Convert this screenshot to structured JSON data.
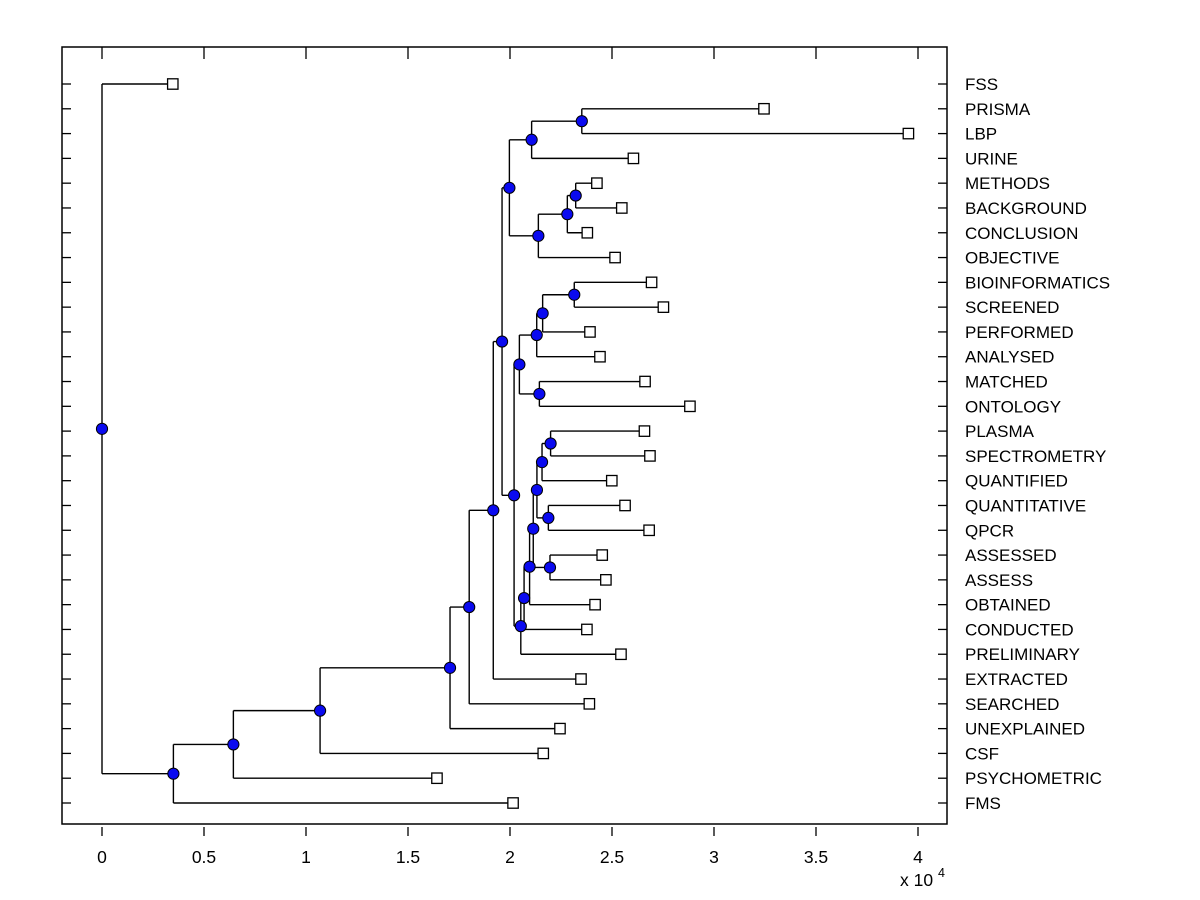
{
  "figure": {
    "background": "#ffffff",
    "colors": {
      "branch_line": "#000000",
      "node_dot_fill": "#0a0af0",
      "node_dot_edge": "#000000",
      "leaf_marker_fill": "#ffffff",
      "leaf_marker_edge": "#000000",
      "text": "#000000",
      "axis_box": "#000000"
    }
  },
  "chart_data": {
    "type": "dendrogram",
    "subtype": "horizontal phylogenetic tree, root at left (distance 0), leaves at right",
    "title": "",
    "grid": "off",
    "legend": "none",
    "x_axis": {
      "tick_labels": [
        "0",
        "0.5",
        "1",
        "1.5",
        "2",
        "2.5",
        "3",
        "3.5",
        "4"
      ],
      "tick_values": [
        0,
        0.5,
        1,
        1.5,
        2,
        2.5,
        3,
        3.5,
        4
      ],
      "multiplier": {
        "prefix": "x 10",
        "exponent": "4"
      },
      "range_shown": [
        -0.2,
        4.14
      ]
    },
    "style": {
      "internal_node_marker": "filled blue circle",
      "leaf_marker": "open white square"
    },
    "leaves": [
      {
        "label": "FSS",
        "x": 0.347
      },
      {
        "label": "PRISMA",
        "x": 3.245
      },
      {
        "label": "LBP",
        "x": 3.953
      },
      {
        "label": "URINE",
        "x": 2.605
      },
      {
        "label": "METHODS",
        "x": 2.426
      },
      {
        "label": "BACKGROUND",
        "x": 2.548
      },
      {
        "label": "CONCLUSION",
        "x": 2.379
      },
      {
        "label": "OBJECTIVE",
        "x": 2.515
      },
      {
        "label": "BIOINFORMATICS",
        "x": 2.694
      },
      {
        "label": "SCREENED",
        "x": 2.752
      },
      {
        "label": "PERFORMED",
        "x": 2.392
      },
      {
        "label": "ANALYSED",
        "x": 2.441
      },
      {
        "label": "MATCHED",
        "x": 2.662
      },
      {
        "label": "ONTOLOGY",
        "x": 2.882
      },
      {
        "label": "PLASMA",
        "x": 2.659
      },
      {
        "label": "SPECTROMETRY",
        "x": 2.686
      },
      {
        "label": "QUANTIFIED",
        "x": 2.499
      },
      {
        "label": "QUANTITATIVE",
        "x": 2.564
      },
      {
        "label": "QPCR",
        "x": 2.682
      },
      {
        "label": "ASSESSED",
        "x": 2.452
      },
      {
        "label": "ASSESS",
        "x": 2.47
      },
      {
        "label": "OBTAINED",
        "x": 2.417
      },
      {
        "label": "CONDUCTED",
        "x": 2.377
      },
      {
        "label": "PRELIMINARY",
        "x": 2.544
      },
      {
        "label": "EXTRACTED",
        "x": 2.348
      },
      {
        "label": "SEARCHED",
        "x": 2.389
      },
      {
        "label": "UNEXPLAINED",
        "x": 2.245
      },
      {
        "label": "CSF",
        "x": 2.163
      },
      {
        "label": "PSYCHOMETRIC",
        "x": 1.642
      },
      {
        "label": "FMS",
        "x": 2.015
      }
    ],
    "internal_nodes": [
      {
        "id": "n_prisma_lbp",
        "x": 2.352,
        "children": [
          "PRISMA",
          "LBP"
        ]
      },
      {
        "id": "n_urine",
        "x": 2.106,
        "children": [
          "n_prisma_lbp",
          "URINE"
        ]
      },
      {
        "id": "n_meth_back",
        "x": 2.322,
        "children": [
          "METHODS",
          "BACKGROUND"
        ]
      },
      {
        "id": "n_conclusion",
        "x": 2.281,
        "children": [
          "n_meth_back",
          "CONCLUSION"
        ]
      },
      {
        "id": "n_objective",
        "x": 2.139,
        "children": [
          "n_conclusion",
          "OBJECTIVE"
        ]
      },
      {
        "id": "n_top8",
        "x": 1.997,
        "children": [
          "n_urine",
          "n_objective"
        ]
      },
      {
        "id": "n_bio_scr",
        "x": 2.315,
        "children": [
          "BIOINFORMATICS",
          "SCREENED"
        ]
      },
      {
        "id": "n_performed",
        "x": 2.16,
        "children": [
          "n_bio_scr",
          "PERFORMED"
        ]
      },
      {
        "id": "n_analysed",
        "x": 2.131,
        "children": [
          "n_performed",
          "ANALYSED"
        ]
      },
      {
        "id": "n_match_onto",
        "x": 2.144,
        "children": [
          "MATCHED",
          "ONTOLOGY"
        ]
      },
      {
        "id": "n_mid6",
        "x": 2.046,
        "children": [
          "n_analysed",
          "n_match_onto"
        ]
      },
      {
        "id": "n_plasma_spec",
        "x": 2.199,
        "children": [
          "PLASMA",
          "SPECTROMETRY"
        ]
      },
      {
        "id": "n_quantified",
        "x": 2.157,
        "children": [
          "n_plasma_spec",
          "QUANTIFIED"
        ]
      },
      {
        "id": "n_quant_qpcr",
        "x": 2.188,
        "children": [
          "QUANTITATIVE",
          "QPCR"
        ]
      },
      {
        "id": "n_p3",
        "x": 2.132,
        "children": [
          "n_quantified",
          "n_quant_qpcr"
        ]
      },
      {
        "id": "n_assess",
        "x": 2.196,
        "children": [
          "ASSESSED",
          "ASSESS"
        ]
      },
      {
        "id": "n_q",
        "x": 2.114,
        "children": [
          "n_p3",
          "n_assess"
        ]
      },
      {
        "id": "n_obtained",
        "x": 2.096,
        "children": [
          "n_q",
          "OBTAINED"
        ]
      },
      {
        "id": "n_conducted",
        "x": 2.069,
        "children": [
          "n_obtained",
          "CONDUCTED"
        ]
      },
      {
        "id": "n_preliminary",
        "x": 2.053,
        "children": [
          "n_conducted",
          "PRELIMINARY"
        ]
      },
      {
        "id": "n_m",
        "x": 2.02,
        "children": [
          "n_mid6",
          "n_preliminary"
        ]
      },
      {
        "id": "n_r",
        "x": 1.961,
        "children": [
          "n_top8",
          "n_m"
        ]
      },
      {
        "id": "n_extracted",
        "x": 1.918,
        "children": [
          "n_r",
          "EXTRACTED"
        ]
      },
      {
        "id": "n_searched",
        "x": 1.8,
        "children": [
          "n_extracted",
          "SEARCHED"
        ]
      },
      {
        "id": "n_unexplained",
        "x": 1.706,
        "children": [
          "n_searched",
          "UNEXPLAINED"
        ]
      },
      {
        "id": "n_csf",
        "x": 1.069,
        "children": [
          "n_unexplained",
          "CSF"
        ]
      },
      {
        "id": "n_psych",
        "x": 0.644,
        "children": [
          "n_csf",
          "PSYCHOMETRIC"
        ]
      },
      {
        "id": "n_fms",
        "x": 0.35,
        "children": [
          "n_psych",
          "FMS"
        ]
      },
      {
        "id": "root",
        "x": 0.0,
        "children": [
          "FSS",
          "n_fms"
        ]
      }
    ]
  }
}
